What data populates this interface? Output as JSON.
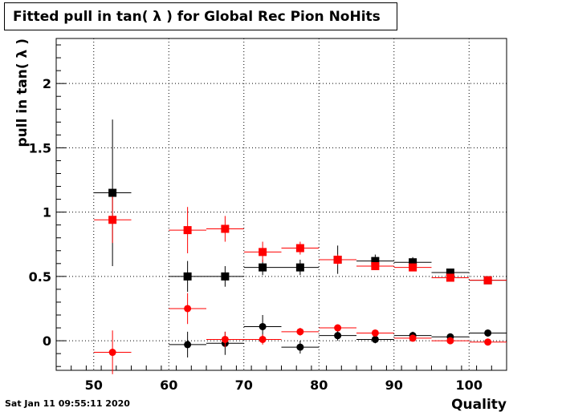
{
  "title": "Fitted pull in tan( λ ) for Global Rec Pion NoHits",
  "timestamp": "Sat Jan 11 09:55:11 2020",
  "chart_data": {
    "type": "scatter",
    "title": "Fitted pull in tan( λ ) for Global Rec Pion NoHits",
    "xlabel": "Quality",
    "ylabel": "pull in tan( λ )",
    "xlim": [
      45,
      105
    ],
    "ylim": [
      -0.23,
      2.35
    ],
    "xticks": [
      50,
      60,
      70,
      80,
      90,
      100
    ],
    "yticks": [
      0,
      0.5,
      1,
      1.5,
      2
    ],
    "xtick_labels": [
      "50",
      "60",
      "70",
      "80",
      "90",
      "100"
    ],
    "ytick_labels": [
      "0",
      "0.5",
      "1",
      "1.5",
      "2"
    ],
    "grid": true,
    "bin_half_width": 2.5,
    "series": [
      {
        "marker": "square",
        "color": "#000000",
        "x": [
          52.5,
          62.5,
          67.5,
          72.5,
          77.5,
          82.5,
          87.5,
          92.5,
          97.5,
          102.5
        ],
        "y": [
          1.15,
          0.5,
          0.5,
          0.57,
          0.57,
          0.63,
          0.62,
          0.61,
          0.53,
          0.47
        ],
        "yerr": [
          0.57,
          0.12,
          0.08,
          0.06,
          0.06,
          0.11,
          0.05,
          0.04,
          0.03,
          0.02
        ]
      },
      {
        "marker": "square",
        "color": "#ff0000",
        "x": [
          52.5,
          62.5,
          67.5,
          72.5,
          77.5,
          82.5,
          87.5,
          92.5,
          97.5,
          102.5
        ],
        "y": [
          0.94,
          0.86,
          0.87,
          0.69,
          0.72,
          0.63,
          0.58,
          0.57,
          0.49,
          0.47
        ],
        "yerr": [
          0.18,
          0.18,
          0.1,
          0.08,
          0.05,
          0.04,
          0.03,
          0.03,
          0.02,
          0.02
        ]
      },
      {
        "marker": "circle",
        "color": "#000000",
        "x": [
          62.5,
          67.5,
          72.5,
          77.5,
          82.5,
          87.5,
          92.5,
          97.5,
          102.5
        ],
        "y": [
          -0.03,
          -0.02,
          0.11,
          -0.05,
          0.04,
          0.01,
          0.04,
          0.03,
          0.06
        ],
        "yerr": [
          0.1,
          0.09,
          0.09,
          0.05,
          0.04,
          0.03,
          0.03,
          0.02,
          0.02
        ]
      },
      {
        "marker": "circle",
        "color": "#ff0000",
        "x": [
          52.5,
          62.5,
          67.5,
          72.5,
          77.5,
          82.5,
          87.5,
          92.5,
          97.5,
          102.5
        ],
        "y": [
          -0.09,
          0.25,
          0.01,
          0.01,
          0.07,
          0.1,
          0.06,
          0.02,
          0.0,
          -0.01
        ],
        "yerr": [
          0.17,
          0.12,
          0.06,
          0.04,
          0.03,
          0.02,
          0.02,
          0.02,
          0.01,
          0.01
        ]
      }
    ]
  }
}
